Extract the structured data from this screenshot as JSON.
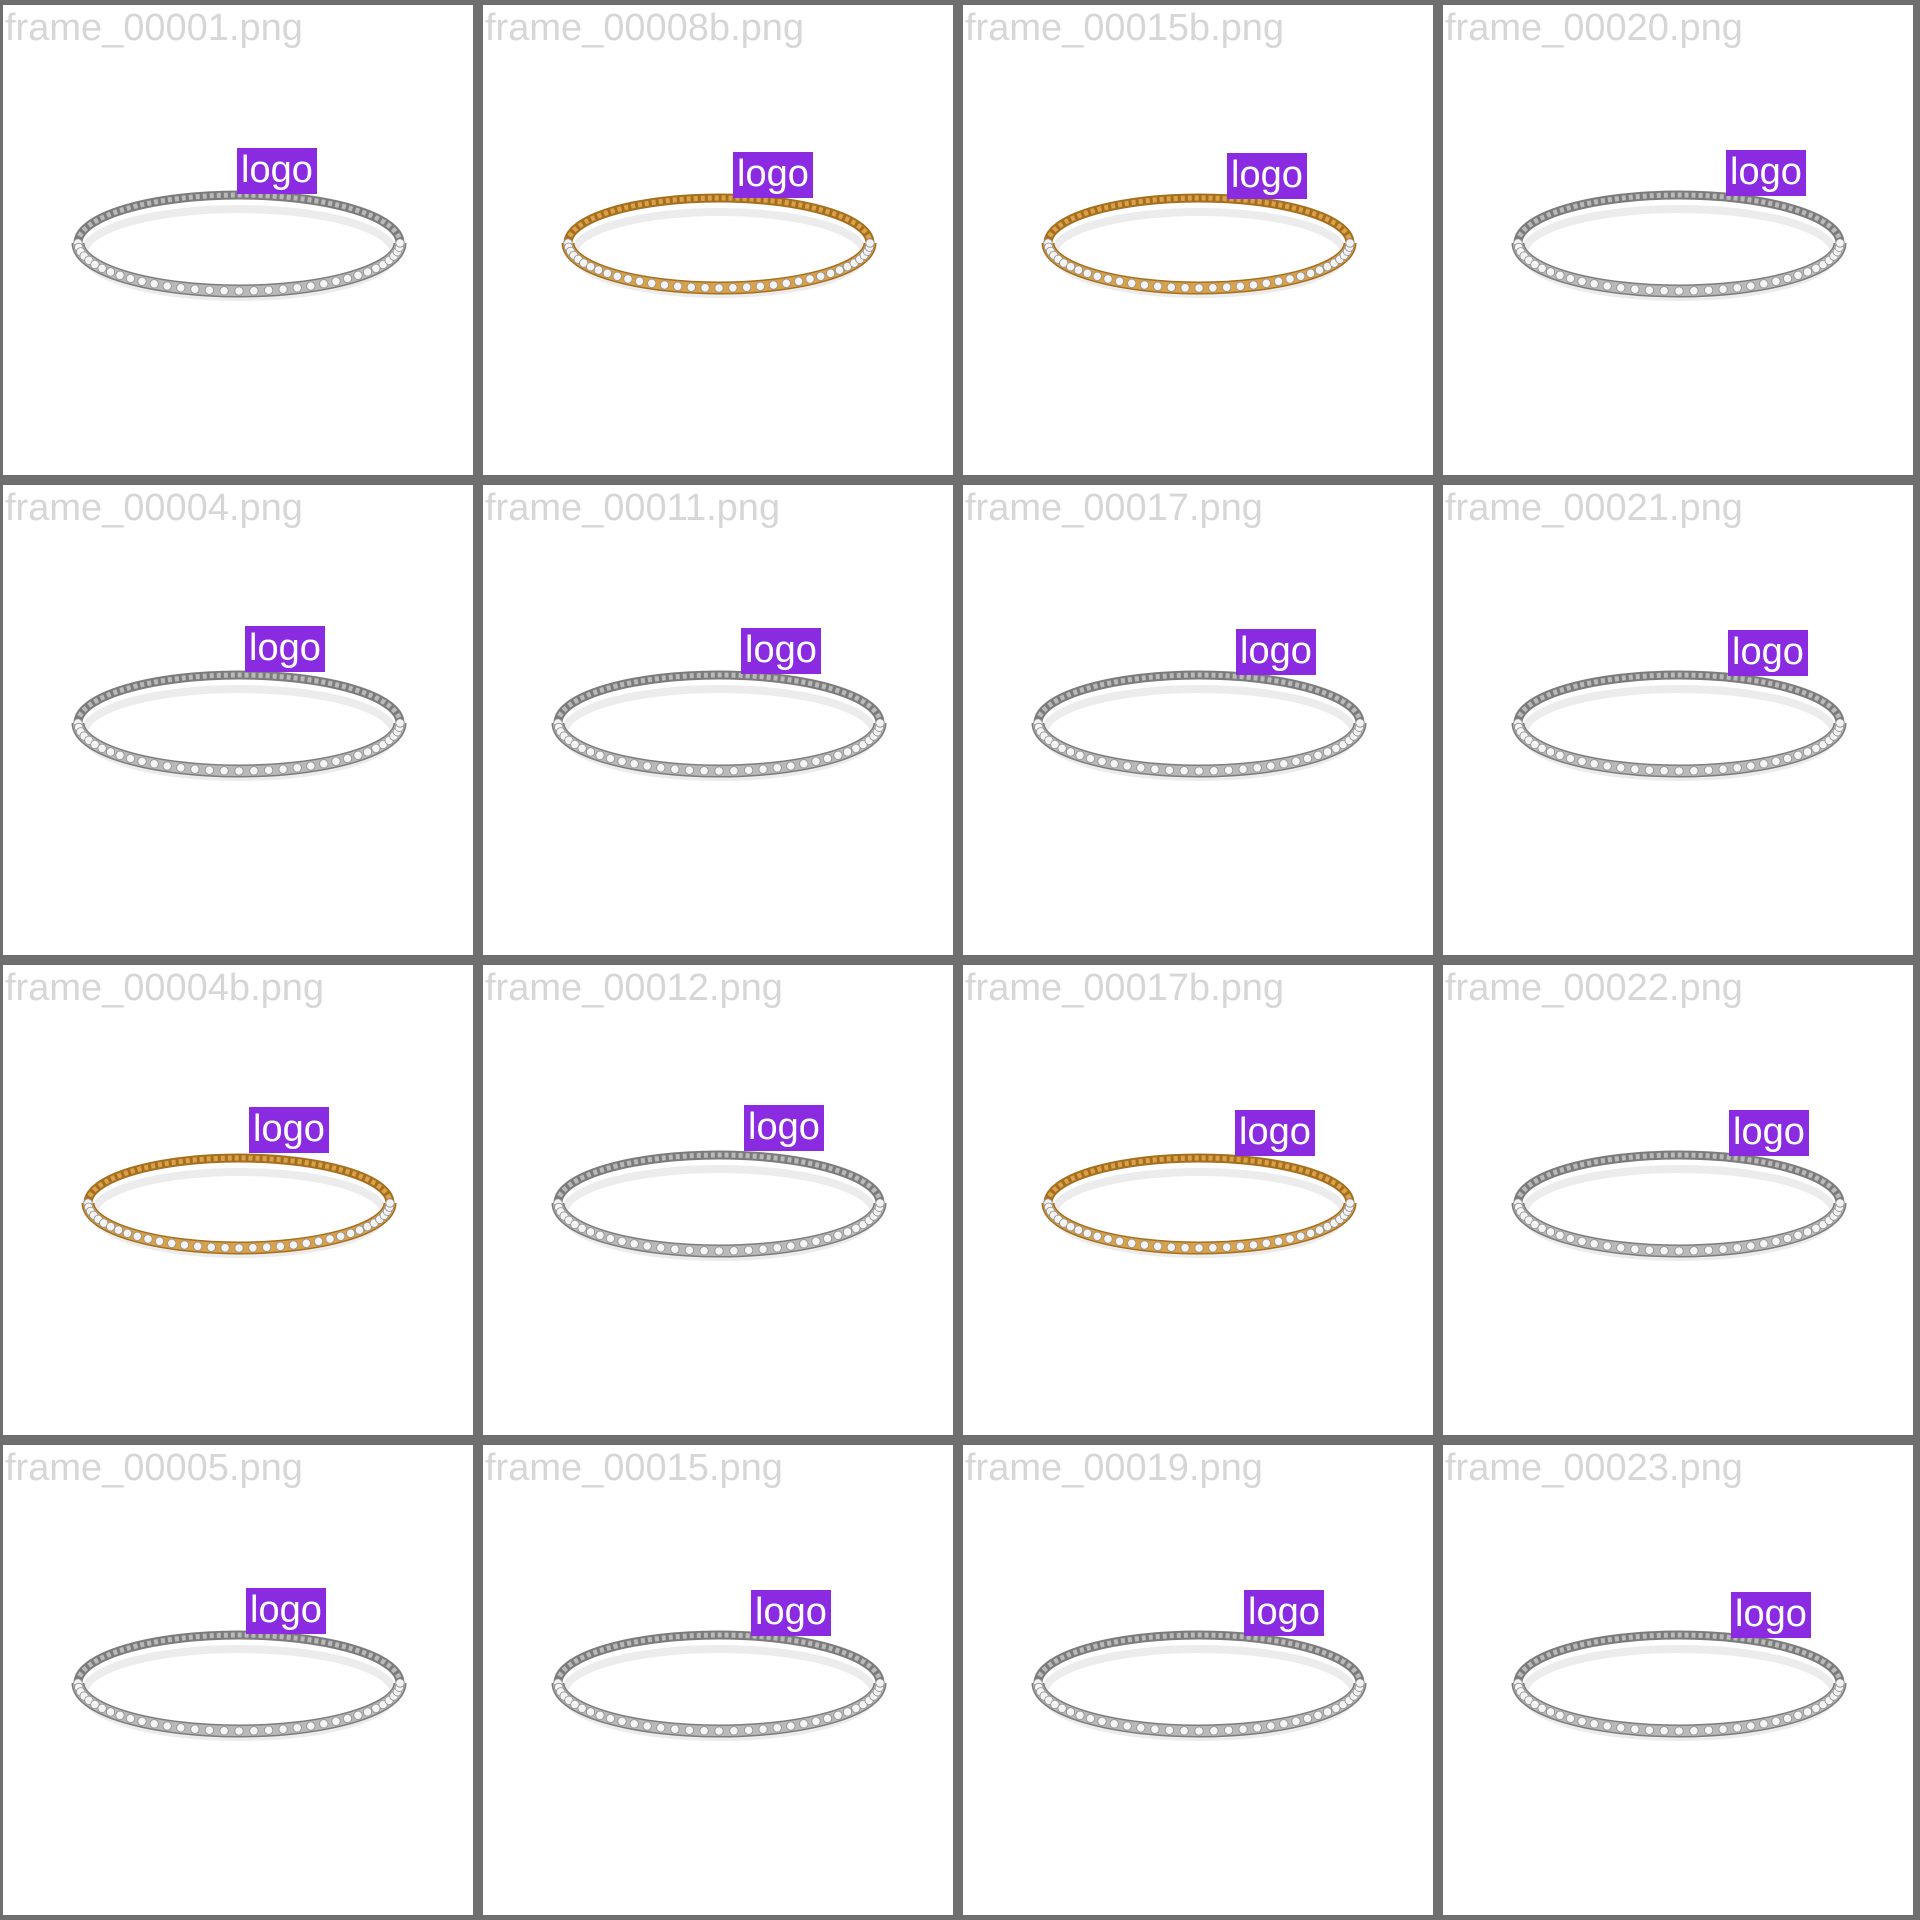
{
  "colors": {
    "frame_gray": "#6f6f6f",
    "filename_text": "#d6d6d6",
    "logo_badge": "#8a2be2",
    "silver": "#b9b9b9",
    "gold": "#d9a24a"
  },
  "tiles": [
    {
      "filename": "frame_00001.png",
      "logo": "logo",
      "metal": "silver"
    },
    {
      "filename": "frame_00008b.png",
      "logo": "logo",
      "metal": "gold"
    },
    {
      "filename": "frame_00015b.png",
      "logo": "logo",
      "metal": "gold"
    },
    {
      "filename": "frame_00020.png",
      "logo": "logo",
      "metal": "silver"
    },
    {
      "filename": "frame_00004.png",
      "logo": "logo",
      "metal": "silver"
    },
    {
      "filename": "frame_00011.png",
      "logo": "logo",
      "metal": "silver"
    },
    {
      "filename": "frame_00017.png",
      "logo": "logo",
      "metal": "silver"
    },
    {
      "filename": "frame_00021.png",
      "logo": "logo",
      "metal": "silver"
    },
    {
      "filename": "frame_00004b.png",
      "logo": "logo",
      "metal": "gold"
    },
    {
      "filename": "frame_00012.png",
      "logo": "logo",
      "metal": "silver"
    },
    {
      "filename": "frame_00017b.png",
      "logo": "logo",
      "metal": "gold"
    },
    {
      "filename": "frame_00022.png",
      "logo": "logo",
      "metal": "silver"
    },
    {
      "filename": "frame_00005.png",
      "logo": "logo",
      "metal": "silver"
    },
    {
      "filename": "frame_00015.png",
      "logo": "logo",
      "metal": "silver"
    },
    {
      "filename": "frame_00019.png",
      "logo": "logo",
      "metal": "silver"
    },
    {
      "filename": "frame_00023.png",
      "logo": "logo",
      "metal": "silver"
    }
  ]
}
